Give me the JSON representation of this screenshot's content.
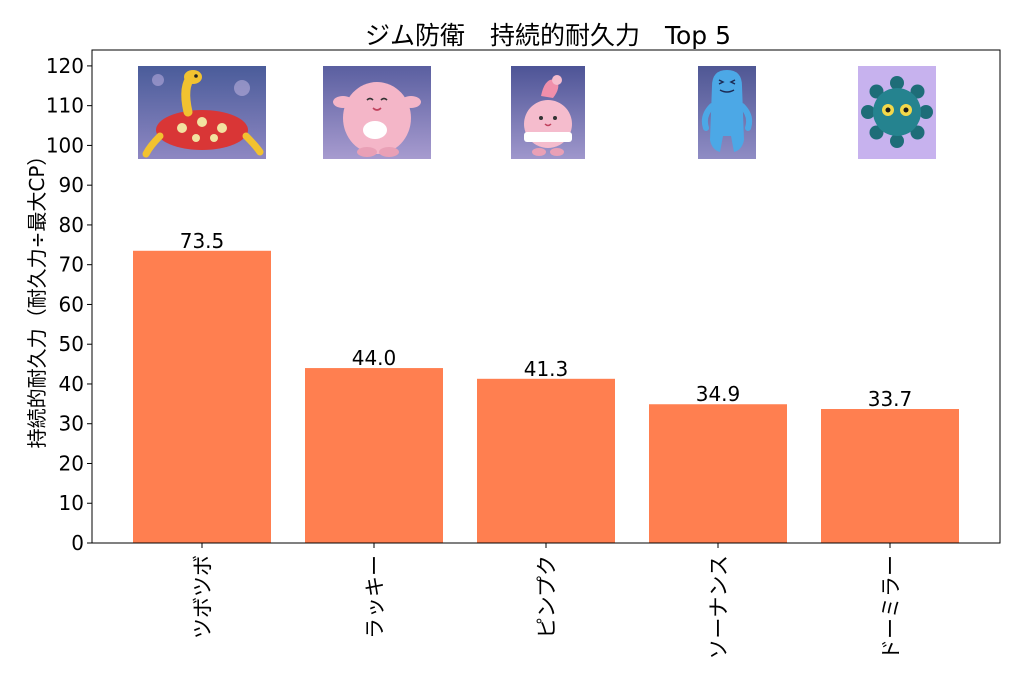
{
  "chart_data": {
    "type": "bar",
    "title": "ジム防衛　持続的耐久力　Top 5",
    "xlabel": "",
    "ylabel": "持続的耐久力（耐久力÷最大CP）",
    "ylim": [
      0,
      124
    ],
    "yticks": [
      0,
      10,
      20,
      30,
      40,
      50,
      60,
      70,
      80,
      90,
      100,
      110,
      120
    ],
    "categories": [
      "ツボツボ",
      "ラッキー",
      "ピンプク",
      "ソーナンス",
      "ドーミラー"
    ],
    "values": [
      73.5,
      44.0,
      41.3,
      34.9,
      33.7
    ],
    "value_labels": [
      "73.5",
      "44.0",
      "41.3",
      "34.9",
      "33.7"
    ],
    "images": [
      "shuckle-portrait",
      "chansey-portrait",
      "happiny-portrait",
      "wobbuffet-portrait",
      "bronzor-portrait"
    ],
    "grid": false,
    "legend": "none",
    "colors": {
      "bar": "#ff7f50",
      "axis": "#000000"
    }
  }
}
